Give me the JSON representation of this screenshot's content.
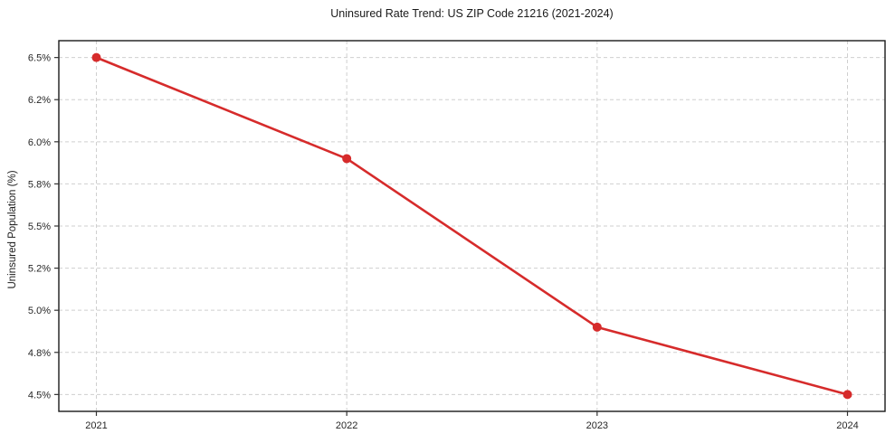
{
  "page": {
    "background": "#ffffff"
  },
  "chart_data": {
    "type": "line",
    "title": "Uninsured Rate Trend: US ZIP Code 21216 (2021-2024)",
    "xlabel": "",
    "ylabel": "Uninsured Population (%)",
    "x": [
      2021,
      2022,
      2023,
      2024
    ],
    "series": [
      {
        "name": "Uninsured rate",
        "values": [
          6.5,
          5.9,
          4.9,
          4.5
        ]
      }
    ],
    "x_ticks": [
      {
        "value": 2021,
        "label": "2021"
      },
      {
        "value": 2022,
        "label": "2022"
      },
      {
        "value": 2023,
        "label": "2023"
      },
      {
        "value": 2024,
        "label": "2024"
      }
    ],
    "y_ticks": [
      {
        "value": 6.5,
        "label": "6.5%"
      },
      {
        "value": 6.25,
        "label": "6.2%"
      },
      {
        "value": 6.0,
        "label": "6.0%"
      },
      {
        "value": 5.75,
        "label": "5.8%"
      },
      {
        "value": 5.5,
        "label": "5.5%"
      },
      {
        "value": 5.25,
        "label": "5.2%"
      },
      {
        "value": 5.0,
        "label": "5.0%"
      },
      {
        "value": 4.75,
        "label": "4.8%"
      },
      {
        "value": 4.5,
        "label": "4.5%"
      }
    ],
    "xlim": [
      2020.85,
      2024.15
    ],
    "ylim": [
      4.4,
      6.6
    ],
    "grid": true,
    "grid_style": "dashed",
    "legend": "none",
    "colors": {
      "line": "#d62b2b",
      "marker": "#d62b2b",
      "grid": "#cfcfcf",
      "spine": "#1a1a1a",
      "tick": "#333333"
    }
  }
}
